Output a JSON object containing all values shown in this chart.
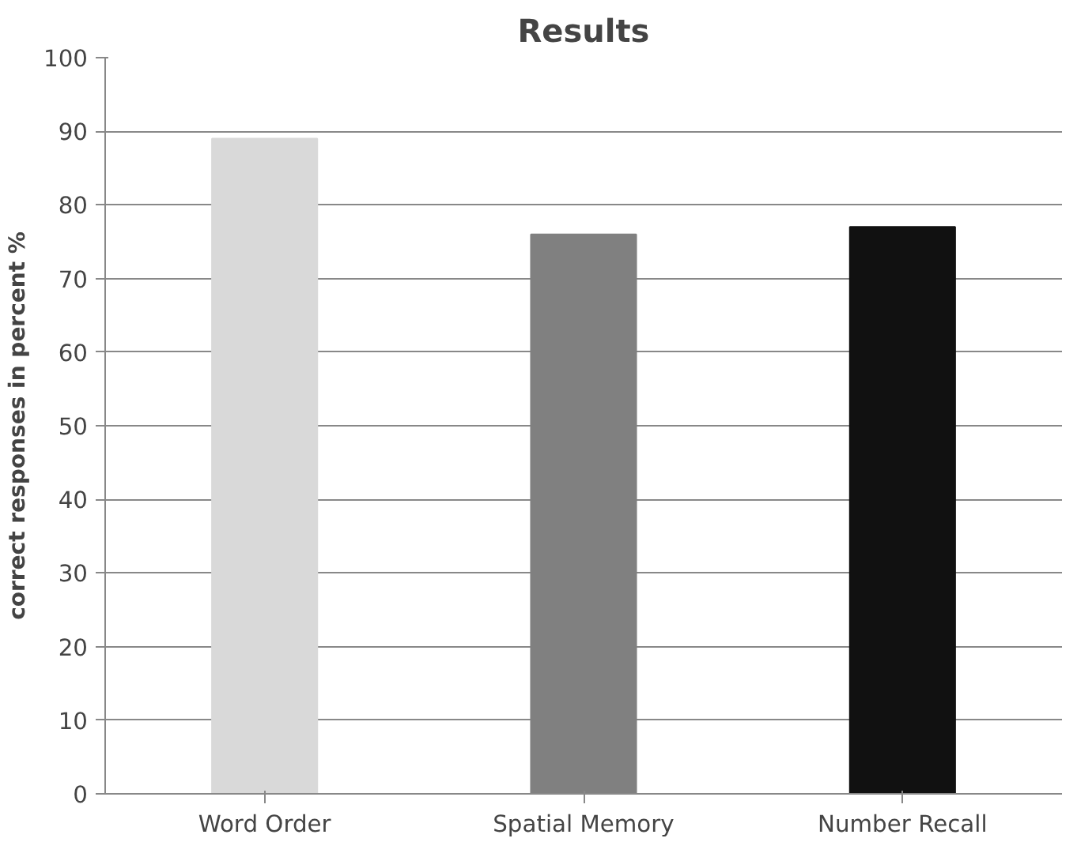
{
  "chart_data": {
    "type": "bar",
    "title": "Results",
    "ylabel": "correct responses in percent %",
    "categories": [
      "Word Order",
      "Spatial Memory",
      "Number Recall"
    ],
    "values": [
      89,
      76,
      77
    ],
    "colors": [
      "#d9d9d9",
      "#808080",
      "#111111"
    ],
    "ylim": [
      0,
      100
    ],
    "yticks": [
      0,
      10,
      20,
      30,
      40,
      50,
      60,
      70,
      80,
      90,
      100
    ],
    "grid": "y"
  }
}
